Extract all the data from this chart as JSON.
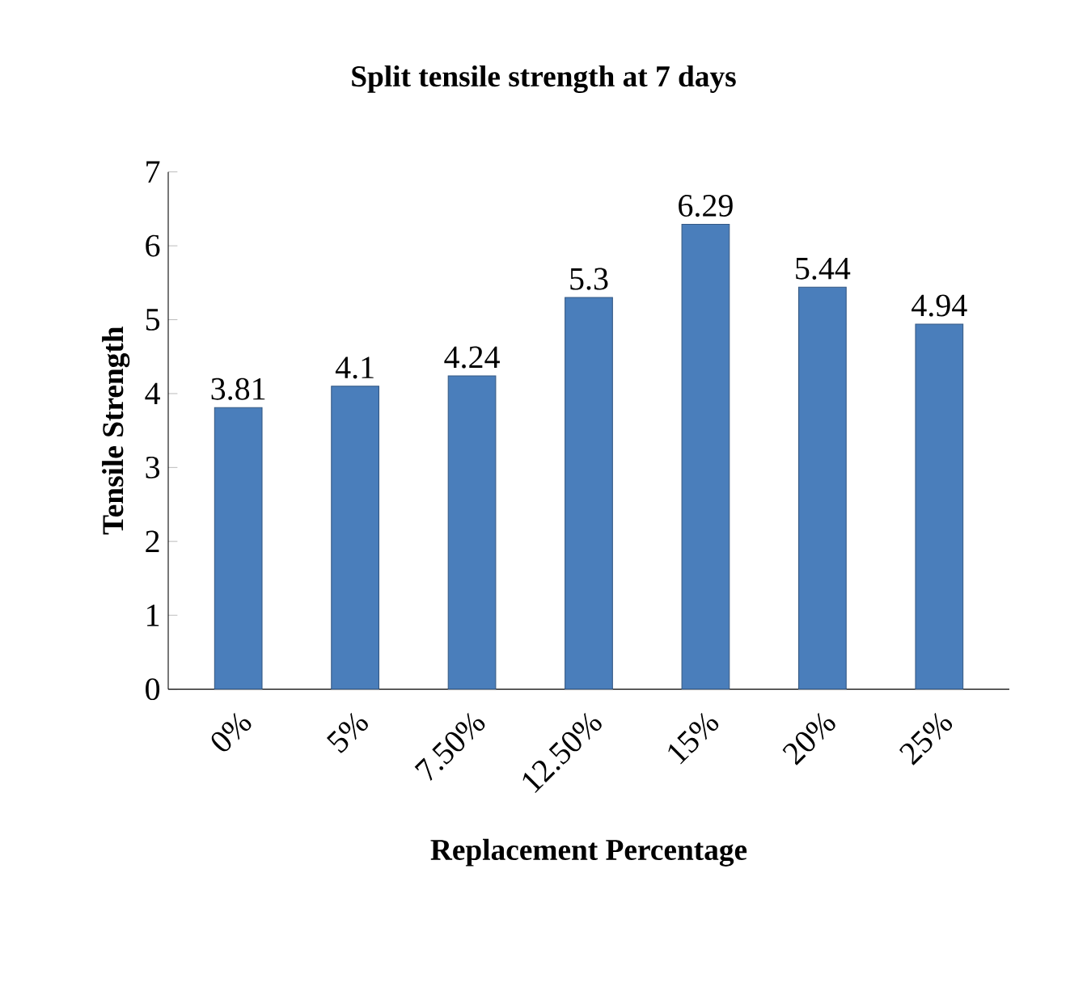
{
  "chart_data": {
    "type": "bar",
    "title": "Split tensile strength at 7 days",
    "xlabel": "Replacement Percentage",
    "ylabel": "Tensile Strength",
    "categories": [
      "0%",
      "5%",
      "7.50%",
      "12.50%",
      "15%",
      "20%",
      "25%"
    ],
    "values": [
      3.81,
      4.1,
      4.24,
      5.3,
      6.29,
      5.44,
      4.94
    ],
    "color": "#4a7ebb",
    "ylim": [
      0,
      7
    ],
    "yticks": [
      0,
      1,
      2,
      3,
      4,
      5,
      6,
      7
    ],
    "data_labels": true
  }
}
